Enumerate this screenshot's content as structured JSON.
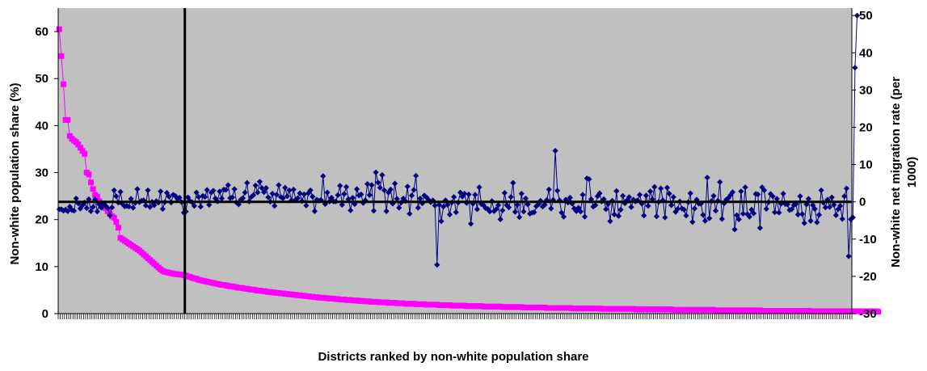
{
  "chart_data": {
    "type": "line",
    "title": "",
    "xlabel": "Districts ranked by non-white population share",
    "ylabel": "Non-white population share (%)",
    "y2label_line1": "Non-white net migration rate (per",
    "y2label_line2": "1000)",
    "ylim": [
      0,
      65
    ],
    "y_ticks": [
      0,
      10,
      20,
      30,
      40,
      50,
      60
    ],
    "y2lim": [
      -30,
      52
    ],
    "y2_ticks": [
      -30,
      -20,
      -10,
      0,
      10,
      20,
      30,
      40,
      50
    ],
    "x_count": 376,
    "grid": false,
    "background": "#c0c0c0",
    "vertical_reference_line_at_rank": 60,
    "horizontal_reference_line_at_y2": 0,
    "series": [
      {
        "axis": "left",
        "color": "#ff00ff",
        "marker": "square",
        "values": [
          60.5,
          54.8,
          48.8,
          41.2,
          41.2,
          37.8,
          37.2,
          36.8,
          36.5,
          36.0,
          35.3,
          34.6,
          34.0,
          30.0,
          29.6,
          27.9,
          26.5,
          25.2,
          24.9,
          23.9,
          23.4,
          22.9,
          22.4,
          21.8,
          21.2,
          20.7,
          20.4,
          19.5,
          18.3,
          16.1,
          15.8,
          15.5,
          15.2,
          14.9,
          14.6,
          14.3,
          14.0,
          13.7,
          13.4,
          13.0,
          12.6,
          12.2,
          11.8,
          11.4,
          11.0,
          10.6,
          10.2,
          9.8,
          9.4,
          9.1,
          8.9,
          8.8,
          8.7,
          8.6,
          8.5,
          8.4,
          8.4,
          8.3,
          8.3,
          8.2,
          8.1,
          7.9,
          7.8,
          7.6,
          7.5,
          7.4,
          7.2,
          7.1,
          7.0,
          6.9,
          6.8,
          6.7,
          6.6,
          6.5,
          6.4,
          6.3,
          6.2,
          6.1,
          6.1,
          6.0,
          5.9,
          5.8,
          5.8,
          5.7,
          5.6,
          5.5,
          5.5,
          5.4,
          5.3,
          5.3,
          5.2,
          5.1,
          5.1,
          5.0,
          4.9,
          4.9,
          4.8,
          4.8,
          4.7,
          4.6,
          4.6,
          4.5,
          4.5,
          4.4,
          4.4,
          4.3,
          4.3,
          4.2,
          4.2,
          4.1,
          4.1,
          4.0,
          4.0,
          3.9,
          3.9,
          3.8,
          3.8,
          3.7,
          3.7,
          3.6,
          3.6,
          3.5,
          3.5,
          3.4,
          3.4,
          3.4,
          3.3,
          3.3,
          3.2,
          3.2,
          3.2,
          3.1,
          3.1,
          3.0,
          3.0,
          3.0,
          2.9,
          2.9,
          2.9,
          2.8,
          2.8,
          2.8,
          2.7,
          2.7,
          2.7,
          2.6,
          2.6,
          2.6,
          2.5,
          2.5,
          2.5,
          2.5,
          2.4,
          2.4,
          2.4,
          2.4,
          2.3,
          2.3,
          2.3,
          2.3,
          2.2,
          2.2,
          2.2,
          2.2,
          2.1,
          2.1,
          2.1,
          2.1,
          2.1,
          2.0,
          2.0,
          2.0,
          2.0,
          2.0,
          1.9,
          1.9,
          1.9,
          1.9,
          1.9,
          1.9,
          1.8,
          1.8,
          1.8,
          1.8,
          1.8,
          1.8,
          1.7,
          1.7,
          1.7,
          1.7,
          1.7,
          1.7,
          1.7,
          1.6,
          1.6,
          1.6,
          1.6,
          1.6,
          1.6,
          1.6,
          1.6,
          1.5,
          1.5,
          1.5,
          1.5,
          1.5,
          1.5,
          1.5,
          1.5,
          1.5,
          1.4,
          1.4,
          1.4,
          1.4,
          1.4,
          1.4,
          1.4,
          1.4,
          1.4,
          1.4,
          1.3,
          1.3,
          1.3,
          1.3,
          1.3,
          1.3,
          1.3,
          1.3,
          1.3,
          1.3,
          1.3,
          1.2,
          1.2,
          1.2,
          1.2,
          1.2,
          1.2,
          1.2,
          1.2,
          1.2,
          1.2,
          1.2,
          1.2,
          1.1,
          1.1,
          1.1,
          1.1,
          1.1,
          1.1,
          1.1,
          1.1,
          1.1,
          1.1,
          1.1,
          1.1,
          1.1,
          1.1,
          1.0,
          1.0,
          1.0,
          1.0,
          1.0,
          1.0,
          1.0,
          1.0,
          1.0,
          1.0,
          1.0,
          1.0,
          1.0,
          1.0,
          1.0,
          1.0,
          0.9,
          0.9,
          0.9,
          0.9,
          0.9,
          0.9,
          0.9,
          0.9,
          0.9,
          0.9,
          0.9,
          0.9,
          0.9,
          0.9,
          0.9,
          0.9,
          0.9,
          0.9,
          0.8,
          0.8,
          0.8,
          0.8,
          0.8,
          0.8,
          0.8,
          0.8,
          0.8,
          0.8,
          0.8,
          0.8,
          0.8,
          0.8,
          0.8,
          0.8,
          0.8,
          0.8,
          0.8,
          0.8,
          0.7,
          0.7,
          0.7,
          0.7,
          0.7,
          0.7,
          0.7,
          0.7,
          0.7,
          0.7,
          0.7,
          0.7,
          0.7,
          0.7,
          0.7,
          0.7,
          0.7,
          0.7,
          0.7,
          0.7,
          0.7,
          0.7,
          0.6,
          0.6,
          0.6,
          0.6,
          0.6,
          0.6,
          0.6,
          0.6,
          0.6,
          0.6,
          0.6,
          0.6,
          0.6,
          0.6,
          0.6,
          0.6,
          0.6,
          0.6,
          0.6,
          0.6,
          0.6,
          0.6,
          0.6,
          0.5,
          0.5,
          0.5,
          0.5,
          0.5,
          0.5,
          0.5,
          0.5,
          0.5,
          0.5,
          0.5,
          0.5,
          0.5,
          0.5,
          0.5,
          0.5,
          0.5,
          0.5,
          0.5,
          0.5,
          0.5,
          0.5,
          0.5,
          0.5,
          0.5,
          0.5,
          0.5,
          0.5,
          0.5,
          0.5,
          0.5,
          0.5,
          0.4
        ]
      },
      {
        "axis": "right",
        "color": "#000080",
        "marker": "diamond",
        "values": [
          -2.0,
          -2.0,
          -2.4,
          -2.1,
          -2.5,
          -1.3,
          -2.2,
          -2.4,
          0.9,
          -0.4,
          -1.8,
          -0.9,
          -0.2,
          -1.7,
          0.7,
          -2.5,
          -1.4,
          0.6,
          -2.6,
          -0.7,
          -1.6,
          -0.5,
          -1.1,
          -1.7,
          -3.6,
          -1.5,
          3.1,
          1.5,
          -0.2,
          2.7,
          -0.6,
          -1.2,
          -1.1,
          -1.3,
          0.8,
          -1.6,
          -0.3,
          3.4,
          -0.1,
          0.3,
          0.4,
          -1.0,
          3.1,
          -1.4,
          0.0,
          -0.9,
          0.2,
          -0.2,
          2.8,
          -1.9,
          -0.1,
          2.4,
          1.4,
          -0.2,
          1.9,
          1.6,
          0.8,
          1.1,
          -0.1,
          -2.9,
          -2.6,
          1.2,
          0.2,
          -0.1,
          -1.1,
          2.5,
          1.3,
          -1.3,
          1.6,
          1.3,
          3.2,
          -0.8,
          2.5,
          3.0,
          0.9,
          0.1,
          2.8,
          0.9,
          3.3,
          3.2,
          4.5,
          1.0,
          1.2,
          3.4,
          -0.2,
          -0.7,
          0.6,
          1.0,
          2.5,
          5.1,
          0.1,
          1.3,
          1.8,
          4.4,
          2.5,
          5.4,
          3.7,
          2.6,
          3.7,
          1.2,
          0.0,
          2.2,
          -1.1,
          1.9,
          4.5,
          1.3,
          1.0,
          3.8,
          1.5,
          3.1,
          0.4,
          3.3,
          0.6,
          1.0,
          2.3,
          0.2,
          2.0,
          -1.0,
          2.3,
          3.1,
          1.4,
          -2.5,
          0.6,
          0.3,
          0.5,
          6.9,
          -0.6,
          2.5,
          0.1,
          1.1,
          0.1,
          0.1,
          1.8,
          4.3,
          -0.8,
          2.1,
          4.0,
          0.7,
          -2.3,
          1.1,
          -0.6,
          3.4,
          1.7,
          2.0,
          -0.3,
          0.4,
          4.8,
          1.8,
          4.5,
          -2.4,
          7.9,
          5.2,
          3.8,
          7.2,
          3.1,
          -2.5,
          2.5,
          3.3,
          -0.5,
          4.9,
          0.8,
          -1.6,
          -0.2,
          0.9,
          0.2,
          4.1,
          -3.2,
          1.7,
          3.2,
          7.0,
          -1.6,
          0.9,
          -0.4,
          1.7,
          1.2,
          0.5,
          -0.1,
          0.4,
          -1.0,
          -16.9,
          -0.8,
          -5.2,
          -1.3,
          0.4,
          -0.8,
          -3.4,
          -0.2,
          1.3,
          -2.8,
          -0.2,
          2.5,
          1.4,
          2.2,
          -0.3,
          2.0,
          -5.9,
          -0.5,
          1.9,
          -2.0,
          3.9,
          -0.6,
          -0.9,
          -1.7,
          -1.9,
          -2.6,
          0.2,
          -2.5,
          -2.0,
          -0.9,
          -4.7,
          -2.3,
          2.4,
          -0.9,
          -1.5,
          1.3,
          5.1,
          -2.7,
          -0.8,
          -4.1,
          2.2,
          -2.6,
          0.9,
          -0.7,
          -3.2,
          -2.9,
          -2.8,
          -1.2,
          -0.7,
          0.3,
          -1.3,
          -0.8,
          0.5,
          3.3,
          -1.8,
          0.5,
          13.7,
          3.0,
          0.4,
          -2.9,
          -4.0,
          0.6,
          -0.2,
          1.1,
          -0.5,
          -1.8,
          -2.5,
          -1.6,
          -2.6,
          1.9,
          -4.0,
          6.3,
          6.1,
          0.7,
          -1.3,
          -0.9,
          1.5,
          2.3,
          0.1,
          0.7,
          -2.0,
          -0.6,
          -5.2,
          0.3,
          -3.4,
          2.9,
          -3.8,
          -2.1,
          1.6,
          -0.4,
          0.4,
          1.3,
          -1.4,
          0.6,
          0.1,
          0.4,
          1.9,
          -0.5,
          -3.7,
          1.7,
          -1.1,
          2.8,
          0.7,
          4.0,
          -3.9,
          0.0,
          3.6,
          0.4,
          -4.2,
          3.8,
          2.2,
          -0.9,
          1.3,
          -2.7,
          -1.9,
          0.1,
          -1.8,
          -2.1,
          -3.7,
          -0.1,
          2.3,
          -5.4,
          -1.8,
          0.6,
          -0.5,
          -0.5,
          -3.5,
          -5.1,
          6.5,
          -4.4,
          0.2,
          1.6,
          -2.4,
          0.3,
          5.3,
          -4.6,
          -0.4,
          0.6,
          1.0,
          1.8,
          2.6,
          -7.4,
          -3.6,
          -4.7,
          2.8,
          -3.2,
          3.9,
          -3.3,
          -4.0,
          -2.1,
          -3.1,
          2.1,
          2.0,
          -7.0,
          3.9,
          3.1,
          -1.9,
          -0.1,
          2.1,
          1.5,
          -2.8,
          0.8,
          -2.9,
          -0.5,
          2.2,
          -0.6,
          -0.7,
          -2.2,
          -2.0,
          -0.9,
          -0.6,
          -3.4,
          1.5,
          -3.3,
          -5.7,
          -0.7,
          0.8,
          -5.1,
          -0.9,
          -1.9,
          -5.5,
          -3.5,
          3.1,
          -0.2,
          -1.5,
          0.6,
          -1.4,
          1.2,
          -0.8,
          -3.6,
          -2.0,
          -1.1,
          -4.6,
          1.5,
          3.6,
          -14.6,
          -4.7,
          -4.2,
          36.0,
          50.0
        ]
      }
    ]
  }
}
